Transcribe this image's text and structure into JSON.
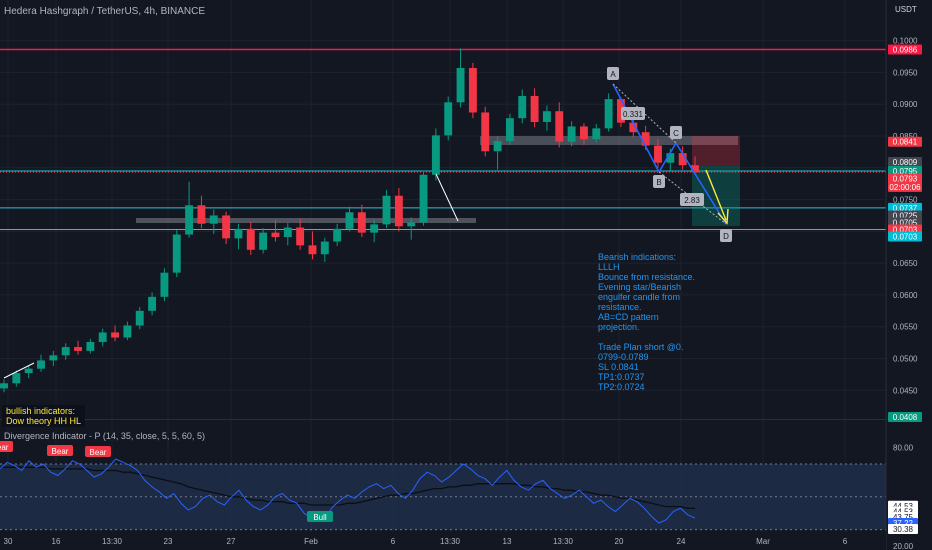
{
  "title": "Hedera Hashgraph / TetherUS, 4h, BINANCE",
  "currency": "USDT",
  "chart_data": {
    "type": "candlestick",
    "price_axis": [
      "0.1000",
      "0.0950",
      "0.0900",
      "0.0850",
      "0.0800",
      "0.0750",
      "0.0700",
      "0.0650",
      "0.0600",
      "0.0550",
      "0.0500",
      "0.0450"
    ],
    "price_range": [
      0.0408,
      0.1012
    ],
    "time_axis": [
      "30",
      "16",
      "13:30",
      "23",
      "27",
      "Feb",
      "6",
      "13:30",
      "13",
      "13:30",
      "20",
      "24",
      "Mar",
      "6"
    ],
    "price_tags": [
      {
        "text": "0.0986",
        "color": "#ff1744",
        "price": 0.0986
      },
      {
        "text": "0.0841",
        "color": "#f23645",
        "price": 0.0841
      },
      {
        "text": "0.0809",
        "color": "#434651",
        "price": 0.0809
      },
      {
        "text": "0.0796",
        "color": "#434651",
        "price": 0.0796
      },
      {
        "text": "0.0795",
        "color": "#089981",
        "price": 0.0795
      },
      {
        "text": "0.0793",
        "color": "#f23645",
        "price": 0.0783
      },
      {
        "text": "02:00:06",
        "color": "#f23645",
        "price": 0.077
      },
      {
        "text": "0.0737",
        "color": "#00bcd4",
        "price": 0.0737
      },
      {
        "text": "0.0725",
        "color": "#434651",
        "price": 0.0725
      },
      {
        "text": "0.0705",
        "color": "#434651",
        "price": 0.0714
      },
      {
        "text": "0.0703",
        "color": "#f23645",
        "price": 0.0703
      },
      {
        "text": "0.0703",
        "color": "#00bcd4",
        "price": 0.0692
      },
      {
        "text": "0.0408",
        "color": "#089981",
        "price": 0.0408
      }
    ],
    "horizontal_levels": [
      {
        "price": 0.0986,
        "color": "#ff1744"
      },
      {
        "price": 0.0795,
        "color": "#26c6da"
      },
      {
        "price": 0.0793,
        "color": "#f23645"
      },
      {
        "price": 0.0737,
        "color": "#26c6da"
      },
      {
        "price": 0.0703,
        "color": "#26c6da"
      }
    ],
    "pattern_labels": [
      "A",
      "B",
      "C",
      "D"
    ],
    "ratios": [
      "0.331",
      "2.83"
    ],
    "candles": [
      {
        "o": 0.0453,
        "h": 0.0467,
        "l": 0.0447,
        "c": 0.0461
      },
      {
        "o": 0.0461,
        "h": 0.0481,
        "l": 0.0456,
        "c": 0.0477
      },
      {
        "o": 0.0477,
        "h": 0.0489,
        "l": 0.0469,
        "c": 0.0484
      },
      {
        "o": 0.0484,
        "h": 0.0506,
        "l": 0.0479,
        "c": 0.0497
      },
      {
        "o": 0.0497,
        "h": 0.0512,
        "l": 0.0488,
        "c": 0.0505
      },
      {
        "o": 0.0505,
        "h": 0.0524,
        "l": 0.0498,
        "c": 0.0518
      },
      {
        "o": 0.0518,
        "h": 0.0528,
        "l": 0.0506,
        "c": 0.0512
      },
      {
        "o": 0.0512,
        "h": 0.0531,
        "l": 0.0508,
        "c": 0.0526
      },
      {
        "o": 0.0526,
        "h": 0.0547,
        "l": 0.0519,
        "c": 0.0541
      },
      {
        "o": 0.0541,
        "h": 0.0552,
        "l": 0.0527,
        "c": 0.0533
      },
      {
        "o": 0.0533,
        "h": 0.0558,
        "l": 0.0529,
        "c": 0.0552
      },
      {
        "o": 0.0552,
        "h": 0.0581,
        "l": 0.0546,
        "c": 0.0575
      },
      {
        "o": 0.0575,
        "h": 0.0604,
        "l": 0.0568,
        "c": 0.0597
      },
      {
        "o": 0.0597,
        "h": 0.0642,
        "l": 0.059,
        "c": 0.0635
      },
      {
        "o": 0.0635,
        "h": 0.0702,
        "l": 0.0628,
        "c": 0.0695
      },
      {
        "o": 0.0695,
        "h": 0.0778,
        "l": 0.069,
        "c": 0.0741
      },
      {
        "o": 0.0741,
        "h": 0.0756,
        "l": 0.0705,
        "c": 0.0712
      },
      {
        "o": 0.0712,
        "h": 0.0734,
        "l": 0.0696,
        "c": 0.0725
      },
      {
        "o": 0.0725,
        "h": 0.0731,
        "l": 0.068,
        "c": 0.0689
      },
      {
        "o": 0.0689,
        "h": 0.0712,
        "l": 0.0672,
        "c": 0.0704
      },
      {
        "o": 0.0704,
        "h": 0.0715,
        "l": 0.0663,
        "c": 0.0671
      },
      {
        "o": 0.0671,
        "h": 0.0705,
        "l": 0.0665,
        "c": 0.0698
      },
      {
        "o": 0.0698,
        "h": 0.0718,
        "l": 0.0684,
        "c": 0.0691
      },
      {
        "o": 0.0691,
        "h": 0.0713,
        "l": 0.0678,
        "c": 0.0706
      },
      {
        "o": 0.0706,
        "h": 0.072,
        "l": 0.0671,
        "c": 0.0678
      },
      {
        "o": 0.0678,
        "h": 0.07,
        "l": 0.0656,
        "c": 0.0664
      },
      {
        "o": 0.0664,
        "h": 0.069,
        "l": 0.0652,
        "c": 0.0684
      },
      {
        "o": 0.0684,
        "h": 0.0712,
        "l": 0.0677,
        "c": 0.0704
      },
      {
        "o": 0.0704,
        "h": 0.0739,
        "l": 0.07,
        "c": 0.073
      },
      {
        "o": 0.073,
        "h": 0.0742,
        "l": 0.0691,
        "c": 0.0698
      },
      {
        "o": 0.0698,
        "h": 0.0718,
        "l": 0.0683,
        "c": 0.0711
      },
      {
        "o": 0.0711,
        "h": 0.0765,
        "l": 0.0705,
        "c": 0.0756
      },
      {
        "o": 0.0756,
        "h": 0.0768,
        "l": 0.07,
        "c": 0.0708
      },
      {
        "o": 0.0708,
        "h": 0.0722,
        "l": 0.0687,
        "c": 0.0714
      },
      {
        "o": 0.0714,
        "h": 0.0796,
        "l": 0.0709,
        "c": 0.0789
      },
      {
        "o": 0.0789,
        "h": 0.0862,
        "l": 0.078,
        "c": 0.0851
      },
      {
        "o": 0.0851,
        "h": 0.0912,
        "l": 0.0843,
        "c": 0.0903
      },
      {
        "o": 0.0903,
        "h": 0.0988,
        "l": 0.0895,
        "c": 0.0957
      },
      {
        "o": 0.0957,
        "h": 0.0965,
        "l": 0.0878,
        "c": 0.0887
      },
      {
        "o": 0.0887,
        "h": 0.0896,
        "l": 0.0818,
        "c": 0.0826
      },
      {
        "o": 0.0826,
        "h": 0.085,
        "l": 0.0797,
        "c": 0.0842
      },
      {
        "o": 0.0842,
        "h": 0.0885,
        "l": 0.0836,
        "c": 0.0878
      },
      {
        "o": 0.0878,
        "h": 0.0923,
        "l": 0.087,
        "c": 0.0913
      },
      {
        "o": 0.0913,
        "h": 0.0925,
        "l": 0.0864,
        "c": 0.0872
      },
      {
        "o": 0.0872,
        "h": 0.0898,
        "l": 0.0858,
        "c": 0.0889
      },
      {
        "o": 0.0889,
        "h": 0.0903,
        "l": 0.0832,
        "c": 0.0841
      },
      {
        "o": 0.0841,
        "h": 0.0873,
        "l": 0.0834,
        "c": 0.0865
      },
      {
        "o": 0.0865,
        "h": 0.087,
        "l": 0.0836,
        "c": 0.0845
      },
      {
        "o": 0.0845,
        "h": 0.0869,
        "l": 0.084,
        "c": 0.0862
      },
      {
        "o": 0.0862,
        "h": 0.0917,
        "l": 0.0857,
        "c": 0.0908
      },
      {
        "o": 0.0908,
        "h": 0.0911,
        "l": 0.0864,
        "c": 0.0871
      },
      {
        "o": 0.0871,
        "h": 0.0882,
        "l": 0.0848,
        "c": 0.0856
      },
      {
        "o": 0.0856,
        "h": 0.0866,
        "l": 0.0828,
        "c": 0.0835
      },
      {
        "o": 0.0835,
        "h": 0.0845,
        "l": 0.08,
        "c": 0.0808
      },
      {
        "o": 0.0808,
        "h": 0.083,
        "l": 0.0795,
        "c": 0.0823
      },
      {
        "o": 0.0823,
        "h": 0.0834,
        "l": 0.0797,
        "c": 0.0804
      },
      {
        "o": 0.0804,
        "h": 0.0818,
        "l": 0.079,
        "c": 0.0793
      }
    ]
  },
  "annotations": {
    "bearish": "Bearish indications:\nLLLH\nBounce from resistance.\nEvening star/Bearish\nengulfer candle from\nresistance.\nAB=CD pattern\nprojection.\n\nTrade Plan short @0.\n0799-0.0789\nSL 0.0841\nTP1:0.0737\nTP2:0.0724",
    "bullish": "bullish indicators:\nDow theory HH HL"
  },
  "indicator": {
    "title": "Divergence Indicator - P (14, 35, close, 5, 5, 60, 5)",
    "axis": [
      "80.00",
      "44.53",
      "44.53",
      "43.75",
      "37.22",
      "30.38",
      "20.00"
    ],
    "axis_colors": [
      "#131722",
      "#131722",
      "#131722",
      "#131722",
      "#2962ff",
      "#131722",
      "#131722"
    ],
    "range": [
      20,
      84
    ],
    "band": [
      30,
      70
    ],
    "labels": [
      {
        "text": "Bear",
        "color": "#f23645"
      },
      {
        "text": "Bear",
        "color": "#f23645"
      },
      {
        "text": "Bear",
        "color": "#f23645"
      },
      {
        "text": "Bull",
        "color": "#089981"
      }
    ],
    "rsi": [
      67,
      71,
      69,
      66,
      72,
      68,
      70,
      65,
      63,
      67,
      72,
      70,
      66,
      62,
      64,
      68,
      73,
      71,
      69,
      66,
      60,
      56,
      53,
      49,
      52,
      46,
      42,
      44,
      49,
      51,
      47,
      45,
      50,
      54,
      48,
      44,
      42,
      45,
      50,
      52,
      48,
      46,
      40,
      37,
      36,
      38,
      44,
      48,
      51,
      49,
      53,
      56,
      58,
      55,
      57,
      52,
      49,
      54,
      61,
      65,
      63,
      59,
      62,
      66,
      70,
      67,
      63,
      61,
      57,
      62,
      66,
      60,
      56,
      54,
      58,
      60,
      55,
      52,
      49,
      51,
      54,
      50,
      46,
      48,
      44,
      41,
      45,
      49,
      47,
      43,
      38,
      34,
      36,
      41,
      43,
      39,
      37
    ],
    "ma": [
      68,
      68,
      68,
      68,
      68,
      68,
      68,
      67,
      67,
      67,
      67,
      67,
      67,
      66,
      66,
      66,
      66,
      65,
      65,
      64,
      63,
      62,
      61,
      60,
      59,
      58,
      56,
      55,
      54,
      53,
      52,
      51,
      50,
      50,
      49,
      48,
      48,
      47,
      47,
      47,
      46,
      46,
      46,
      45,
      45,
      45,
      45,
      45,
      46,
      46,
      47,
      48,
      49,
      50,
      51,
      51,
      52,
      52,
      53,
      54,
      55,
      55,
      56,
      56,
      57,
      57,
      58,
      58,
      58,
      58,
      58,
      58,
      57,
      57,
      56,
      56,
      55,
      55,
      54,
      54,
      53,
      53,
      52,
      51,
      51,
      50,
      49,
      49,
      48,
      47,
      46,
      45,
      44,
      44,
      44,
      43,
      43
    ]
  }
}
